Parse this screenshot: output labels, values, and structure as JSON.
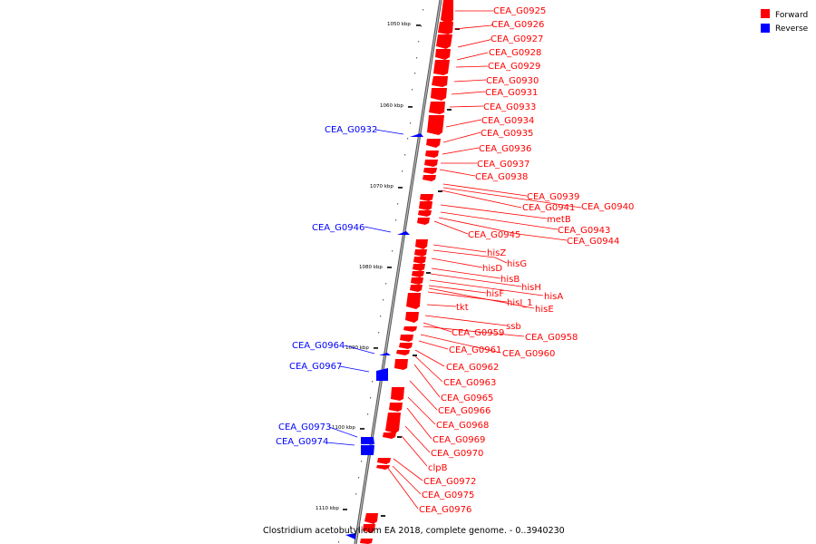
{
  "legend": [
    {
      "label": "Forward",
      "color": "#ff0000"
    },
    {
      "label": "Reverse",
      "color": "#0000ff"
    }
  ],
  "colors": {
    "forward": "#ff0000",
    "reverse": "#0000ff",
    "backbone": "#888888"
  },
  "caption": "Clostridium acetobutylicum EA 2018, complete genome. - 0..3940230",
  "ticks": [
    "1050 kbp",
    "1060 kbp",
    "1070 kbp",
    "1080 kbp",
    "1090 kbp",
    "1100 kbp",
    "1110 kbp"
  ],
  "forward_genes": [
    "CEA_G0925",
    "CEA_G0926",
    "CEA_G0927",
    "CEA_G0928",
    "CEA_G0929",
    "CEA_G0930",
    "CEA_G0931",
    "CEA_G0933",
    "CEA_G0934",
    "CEA_G0935",
    "CEA_G0936",
    "CEA_G0937",
    "CEA_G0938",
    "CEA_G0939",
    "CEA_G0941",
    "CEA_G0940",
    "metB",
    "CEA_G0943",
    "CEA_G0945",
    "CEA_G0944",
    "hisZ",
    "hisG",
    "hisD",
    "hisB",
    "hisH",
    "hisF",
    "hisA",
    "hisI_1",
    "hisE",
    "tkt",
    "ssb",
    "CEA_G0959",
    "CEA_G0958",
    "CEA_G0961",
    "CEA_G0960",
    "CEA_G0962",
    "CEA_G0963",
    "CEA_G0965",
    "CEA_G0966",
    "CEA_G0968",
    "CEA_G0969",
    "CEA_G0970",
    "clpB",
    "CEA_G0972",
    "CEA_G0975",
    "CEA_G0976"
  ],
  "reverse_genes": [
    "CEA_G0932",
    "CEA_G0946",
    "CEA_G0964",
    "CEA_G0967",
    "CEA_G0973",
    "CEA_G0974"
  ]
}
